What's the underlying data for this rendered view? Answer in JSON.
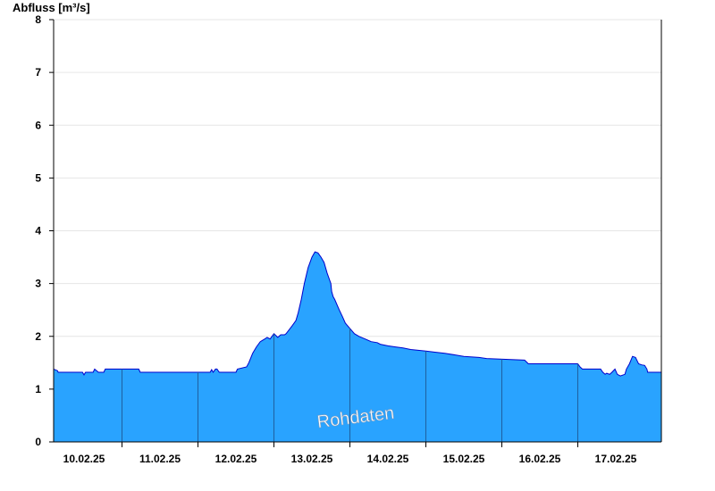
{
  "chart_data": {
    "type": "area",
    "title": "",
    "ylabel": "Abfluss [m³/s]",
    "xlabel": "",
    "ylim": [
      0,
      8
    ],
    "yticks": [
      0,
      1,
      2,
      3,
      4,
      5,
      6,
      7,
      8
    ],
    "xlim": [
      9.6,
      17.6
    ],
    "xticks": [
      {
        "label": "10.02.25",
        "x": 10.0
      },
      {
        "label": "11.02.25",
        "x": 11.0
      },
      {
        "label": "12.02.25",
        "x": 12.0
      },
      {
        "label": "13.02.25",
        "x": 13.0
      },
      {
        "label": "14.02.25",
        "x": 14.0
      },
      {
        "label": "15.02.25",
        "x": 15.0
      },
      {
        "label": "16.02.25",
        "x": 16.0
      },
      {
        "label": "17.02.25",
        "x": 17.0
      }
    ],
    "day_boundaries": [
      10.5,
      11.5,
      12.5,
      13.5,
      14.5,
      15.5,
      16.5
    ],
    "grid": "horizontal",
    "watermark": "Rohdaten",
    "colors": {
      "fill": "#29a3ff",
      "line": "#0000cc",
      "axis": "#000000",
      "grid": "#e6e6e6",
      "separator": "#1f5f9f"
    },
    "series": [
      {
        "x": [
          9.6,
          9.65,
          9.66,
          9.98,
          10.0,
          10.02,
          10.12,
          10.14,
          10.19,
          10.26,
          10.28,
          10.72,
          10.74,
          11.66,
          11.68,
          11.7,
          11.73,
          11.75,
          11.78,
          11.82,
          11.84,
          12.0,
          12.02,
          12.14,
          12.17,
          12.22,
          12.27,
          12.32,
          12.38,
          12.41,
          12.45,
          12.5,
          12.55,
          12.59,
          12.6,
          12.62,
          12.64,
          12.66,
          12.74,
          12.79,
          12.82,
          12.86,
          12.9,
          12.95,
          13.0,
          13.04,
          13.08,
          13.12,
          13.16,
          13.2,
          13.25,
          13.26,
          13.28,
          13.3,
          13.36,
          13.4,
          13.44,
          13.5,
          13.56,
          13.62,
          13.7,
          13.78,
          13.86,
          13.9,
          14.0,
          14.1,
          14.2,
          14.3,
          14.5,
          14.62,
          14.75,
          15.0,
          15.2,
          15.3,
          15.8,
          15.85,
          16.0,
          16.25,
          16.5,
          16.53,
          16.56,
          16.8,
          16.83,
          16.86,
          16.88,
          16.92,
          16.95,
          16.99,
          17.02,
          17.06,
          17.12,
          17.14,
          17.18,
          17.22,
          17.26,
          17.3,
          17.34,
          17.38,
          17.41,
          17.42,
          17.52,
          17.6
        ],
        "y": [
          1.38,
          1.35,
          1.32,
          1.32,
          1.27,
          1.32,
          1.32,
          1.38,
          1.32,
          1.32,
          1.38,
          1.38,
          1.32,
          1.32,
          1.37,
          1.32,
          1.38,
          1.38,
          1.32,
          1.32,
          1.32,
          1.32,
          1.38,
          1.42,
          1.5,
          1.68,
          1.8,
          1.9,
          1.95,
          1.98,
          1.95,
          2.05,
          1.98,
          2.03,
          2.03,
          2.03,
          2.03,
          2.05,
          2.2,
          2.3,
          2.45,
          2.7,
          3.0,
          3.3,
          3.5,
          3.6,
          3.58,
          3.5,
          3.4,
          3.2,
          3.0,
          2.85,
          2.75,
          2.7,
          2.5,
          2.38,
          2.25,
          2.15,
          2.05,
          2.0,
          1.95,
          1.9,
          1.88,
          1.85,
          1.82,
          1.8,
          1.78,
          1.75,
          1.72,
          1.7,
          1.68,
          1.62,
          1.6,
          1.58,
          1.55,
          1.48,
          1.48,
          1.48,
          1.48,
          1.42,
          1.38,
          1.38,
          1.32,
          1.28,
          1.3,
          1.28,
          1.32,
          1.38,
          1.28,
          1.25,
          1.28,
          1.38,
          1.48,
          1.62,
          1.6,
          1.48,
          1.46,
          1.45,
          1.38,
          1.32,
          1.32,
          1.32
        ]
      }
    ]
  }
}
